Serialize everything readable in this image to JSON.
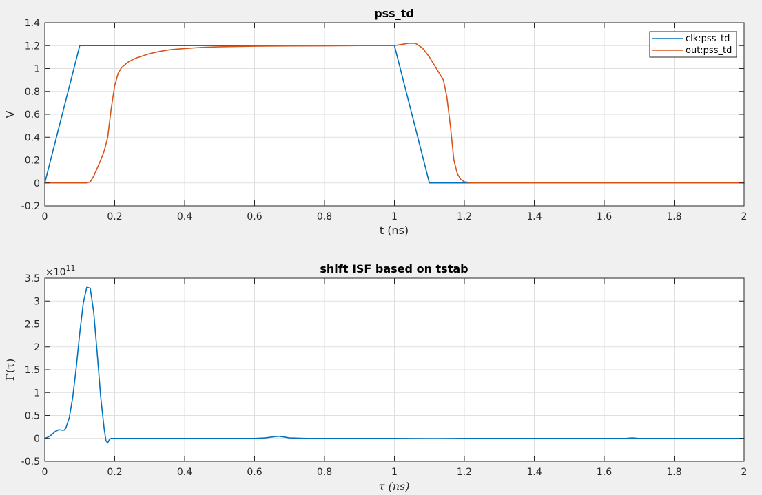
{
  "chart_data": [
    {
      "type": "line",
      "title": "pss_td",
      "xlabel": "t (ns)",
      "ylabel": "V",
      "xlim": [
        0,
        2
      ],
      "ylim": [
        -0.2,
        1.4
      ],
      "xticks": [
        0,
        0.2,
        0.4,
        0.6,
        0.8,
        1,
        1.2,
        1.4,
        1.6,
        1.8,
        2
      ],
      "xtick_labels": [
        "0",
        "0.2",
        "0.4",
        "0.6",
        "0.8",
        "1",
        "1.2",
        "1.4",
        "1.6",
        "1.8",
        "2"
      ],
      "yticks": [
        -0.2,
        0,
        0.2,
        0.4,
        0.6,
        0.8,
        1,
        1.2,
        1.4
      ],
      "ytick_labels": [
        "-0.2",
        "0",
        "0.2",
        "0.4",
        "0.6",
        "0.8",
        "1",
        "1.2",
        "1.4"
      ],
      "grid": true,
      "legend_position": "top-right",
      "series": [
        {
          "name": "clk:pss_td",
          "color": "#0072bd",
          "x": [
            0,
            0.1,
            1.0,
            1.1,
            2.0
          ],
          "y": [
            0,
            1.2,
            1.2,
            0,
            0
          ]
        },
        {
          "name": "out:pss_td",
          "color": "#d95319",
          "x": [
            0,
            0.12,
            0.13,
            0.14,
            0.15,
            0.16,
            0.17,
            0.18,
            0.19,
            0.2,
            0.21,
            0.22,
            0.24,
            0.26,
            0.28,
            0.3,
            0.33,
            0.36,
            0.4,
            0.45,
            0.5,
            0.6,
            0.7,
            0.8,
            0.9,
            1.0,
            1.02,
            1.04,
            1.06,
            1.08,
            1.1,
            1.12,
            1.14,
            1.15,
            1.16,
            1.17,
            1.18,
            1.19,
            1.2,
            1.22,
            1.25,
            1.3,
            2.0
          ],
          "y": [
            0,
            0,
            0.01,
            0.06,
            0.13,
            0.2,
            0.28,
            0.4,
            0.65,
            0.85,
            0.96,
            1.01,
            1.06,
            1.09,
            1.11,
            1.13,
            1.15,
            1.165,
            1.175,
            1.185,
            1.19,
            1.195,
            1.197,
            1.198,
            1.2,
            1.2,
            1.21,
            1.22,
            1.22,
            1.18,
            1.1,
            1.0,
            0.9,
            0.75,
            0.5,
            0.2,
            0.08,
            0.03,
            0.01,
            0.002,
            0,
            0,
            0
          ]
        }
      ]
    },
    {
      "type": "line",
      "title": "shift ISF based on tstab",
      "xlabel": "τ (ns)",
      "ylabel": "Γ(τ)",
      "exponent_label": "×10",
      "exponent_power": "11",
      "xlim": [
        0,
        2
      ],
      "ylim": [
        -0.5,
        3.5
      ],
      "xticks": [
        0,
        0.2,
        0.4,
        0.6,
        0.8,
        1,
        1.2,
        1.4,
        1.6,
        1.8,
        2
      ],
      "xtick_labels": [
        "0",
        "0.2",
        "0.4",
        "0.6",
        "0.8",
        "1",
        "1.2",
        "1.4",
        "1.6",
        "1.8",
        "2"
      ],
      "yticks": [
        -0.5,
        0,
        0.5,
        1,
        1.5,
        2,
        2.5,
        3,
        3.5
      ],
      "ytick_labels": [
        "-0.5",
        "0",
        "0.5",
        "1",
        "1.5",
        "2",
        "2.5",
        "3",
        "3.5"
      ],
      "grid": true,
      "series": [
        {
          "color": "#0072bd",
          "x": [
            0,
            0.01,
            0.02,
            0.03,
            0.04,
            0.05,
            0.055,
            0.06,
            0.07,
            0.08,
            0.09,
            0.1,
            0.11,
            0.12,
            0.13,
            0.14,
            0.15,
            0.16,
            0.17,
            0.175,
            0.18,
            0.185,
            0.19,
            0.2,
            0.3,
            0.5,
            0.6,
            0.63,
            0.66,
            0.67,
            0.68,
            0.7,
            0.75,
            0.8,
            1.0,
            1.1,
            1.2,
            1.5,
            1.66,
            1.68,
            1.7,
            1.8,
            2.0
          ],
          "y": [
            0,
            0.03,
            0.08,
            0.15,
            0.19,
            0.18,
            0.18,
            0.22,
            0.45,
            0.9,
            1.55,
            2.3,
            2.95,
            3.3,
            3.28,
            2.75,
            1.85,
            0.9,
            0.2,
            -0.05,
            -0.1,
            -0.02,
            0.0,
            0,
            0,
            0,
            0,
            0.01,
            0.04,
            0.045,
            0.035,
            0.01,
            0,
            0,
            0,
            -0.005,
            0,
            0,
            0,
            0.01,
            0,
            0,
            0
          ]
        }
      ]
    }
  ]
}
